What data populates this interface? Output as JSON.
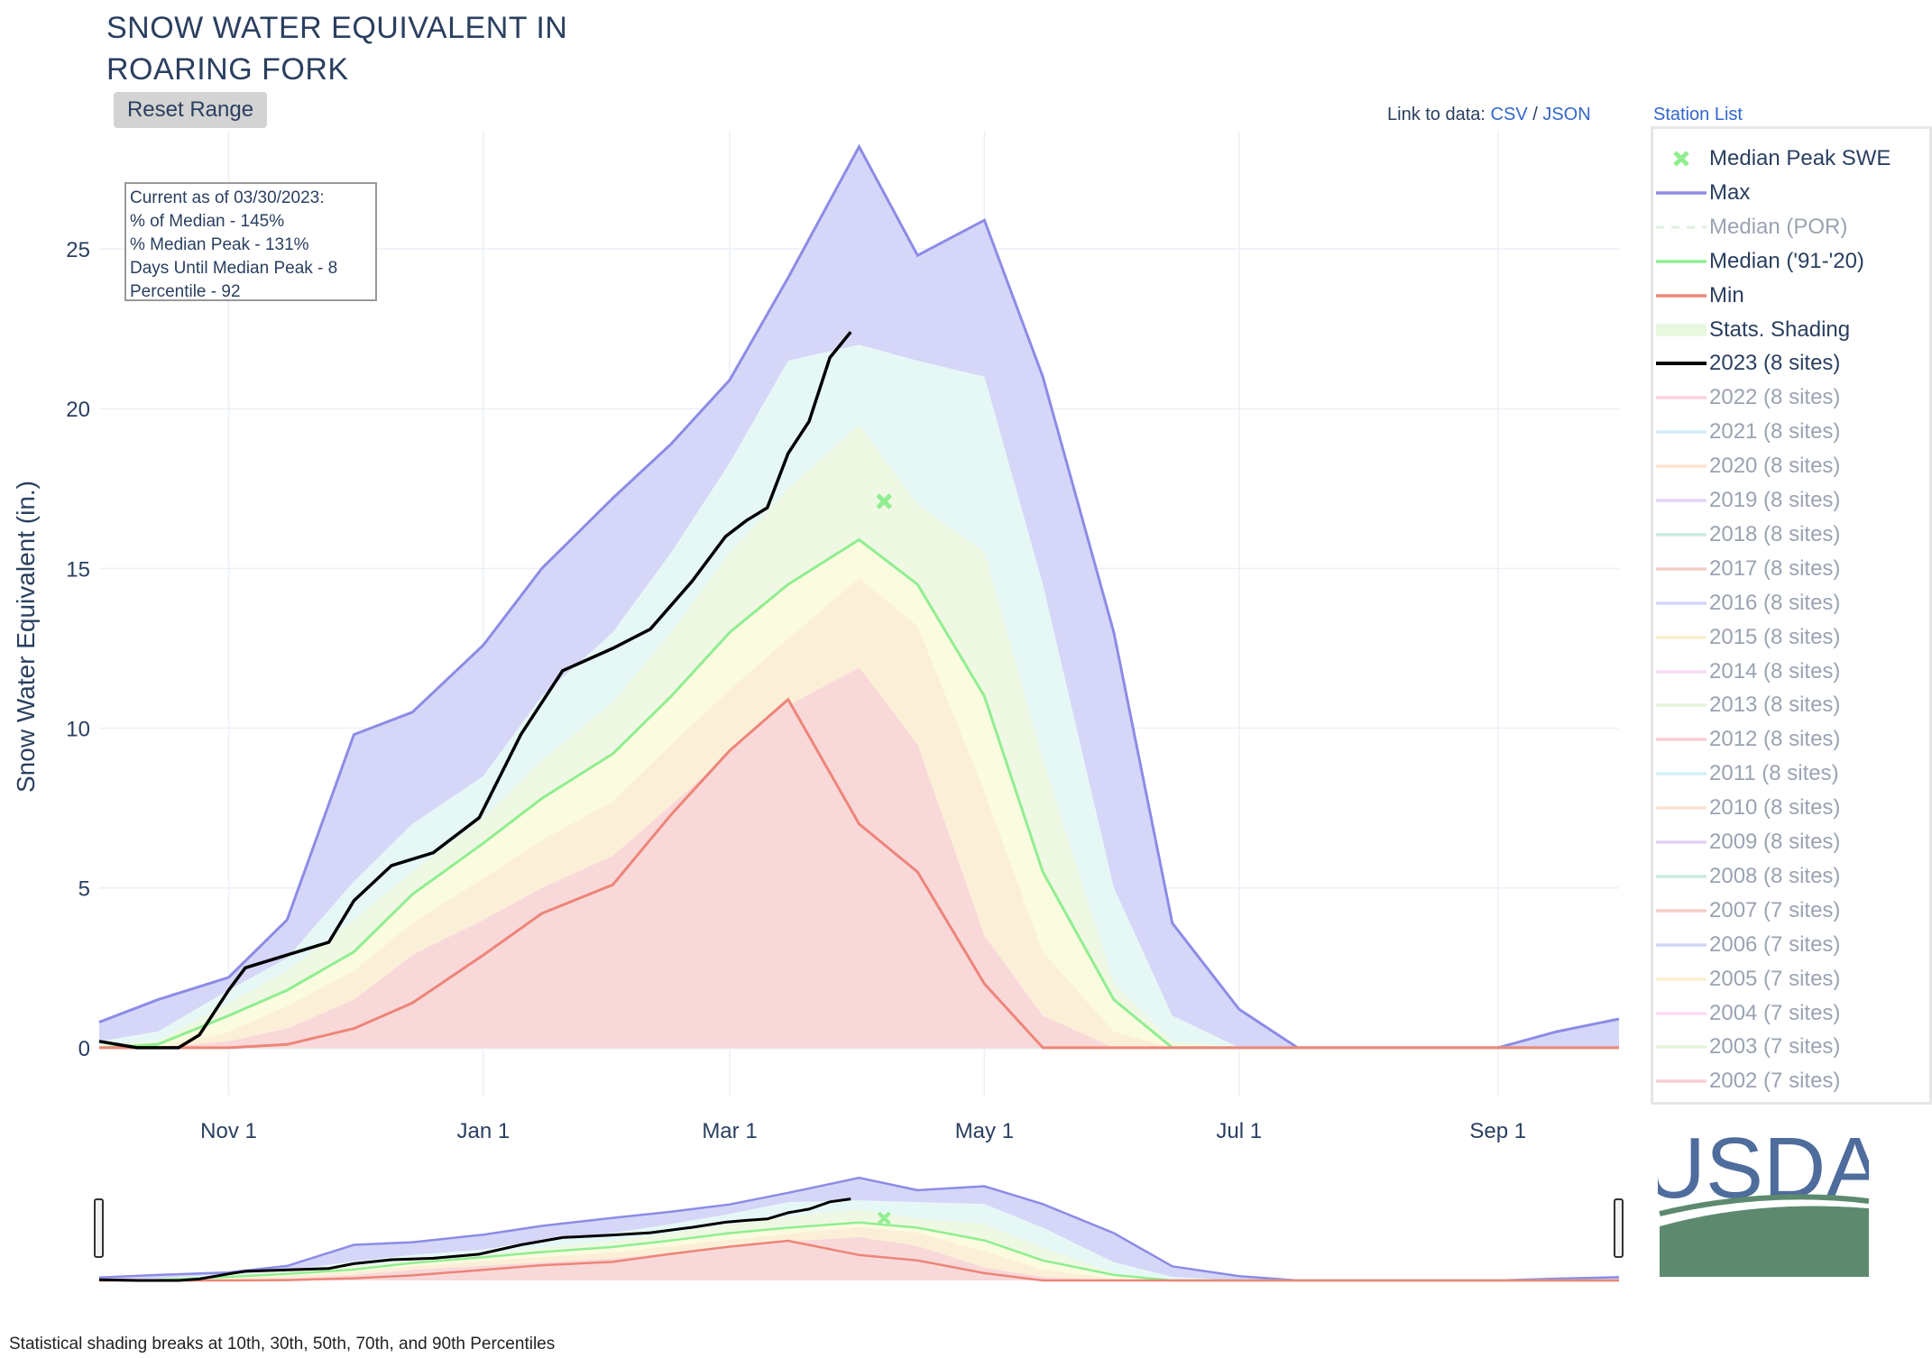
{
  "title": {
    "line1": "SNOW WATER EQUIVALENT IN",
    "line2": "ROARING FORK"
  },
  "reset_button": "Reset Range",
  "links": {
    "prefix": "Link to data:",
    "csv": "CSV",
    "sep": "/",
    "json": "JSON",
    "station_list": "Station List"
  },
  "info_box": {
    "line1": "Current as of 03/30/2023:",
    "line2": "% of Median - 145%",
    "line3": "% Median Peak - 131%",
    "line4": "Days Until Median Peak - 8",
    "line5": "Percentile - 92"
  },
  "footnote": "Statistical shading breaks at 10th, 30th, 50th, 70th, and 90th Percentiles",
  "logo": {
    "text": "USDA",
    "color_text": "#4e6c9c",
    "color_green": "#5d8a6f"
  },
  "legend": [
    {
      "label": "Median Peak SWE",
      "color": "#90ee90",
      "symbol": "x",
      "active": true
    },
    {
      "label": "Max",
      "color": "#8c8ce6",
      "symbol": "line",
      "active": true
    },
    {
      "label": "Median (POR)",
      "color": "#b8e6b8",
      "symbol": "dash",
      "active": false
    },
    {
      "label": "Median ('91-'20)",
      "color": "#90ee90",
      "symbol": "line",
      "active": true
    },
    {
      "label": "Min",
      "color": "#ed8579",
      "symbol": "line",
      "active": true
    },
    {
      "label": "Stats. Shading",
      "color": "#e8f8e0",
      "symbol": "block",
      "active": true
    },
    {
      "label": "2023 (8 sites)",
      "color": "#000000",
      "symbol": "line",
      "active": true
    },
    {
      "label": "2022 (8 sites)",
      "color": "#f4a6b8",
      "symbol": "line",
      "active": false
    },
    {
      "label": "2021 (8 sites)",
      "color": "#a8dcf0",
      "symbol": "line",
      "active": false
    },
    {
      "label": "2020 (8 sites)",
      "color": "#f8c89c",
      "symbol": "line",
      "active": false
    },
    {
      "label": "2019 (8 sites)",
      "color": "#c8a8ec",
      "symbol": "line",
      "active": false
    },
    {
      "label": "2018 (8 sites)",
      "color": "#94d8c0",
      "symbol": "line",
      "active": false
    },
    {
      "label": "2017 (8 sites)",
      "color": "#ec9c90",
      "symbol": "line",
      "active": false
    },
    {
      "label": "2016 (8 sites)",
      "color": "#a8aef0",
      "symbol": "line",
      "active": false
    },
    {
      "label": "2015 (8 sites)",
      "color": "#f6e0a0",
      "symbol": "line",
      "active": false
    },
    {
      "label": "2014 (8 sites)",
      "color": "#f2b8ea",
      "symbol": "line",
      "active": false
    },
    {
      "label": "2013 (8 sites)",
      "color": "#c4ecb4",
      "symbol": "line",
      "active": false
    },
    {
      "label": "2012 (8 sites)",
      "color": "#f4a0b0",
      "symbol": "line",
      "active": false
    },
    {
      "label": "2011 (8 sites)",
      "color": "#a8e2f4",
      "symbol": "line",
      "active": false
    },
    {
      "label": "2010 (8 sites)",
      "color": "#f8c8a8",
      "symbol": "line",
      "active": false
    },
    {
      "label": "2009 (8 sites)",
      "color": "#c8a4ec",
      "symbol": "line",
      "active": false
    },
    {
      "label": "2008 (8 sites)",
      "color": "#94d8c4",
      "symbol": "line",
      "active": false
    },
    {
      "label": "2007 (7 sites)",
      "color": "#ec9c90",
      "symbol": "line",
      "active": false
    },
    {
      "label": "2006 (7 sites)",
      "color": "#a8aef0",
      "symbol": "line",
      "active": false
    },
    {
      "label": "2005 (7 sites)",
      "color": "#f6e0a0",
      "symbol": "line",
      "active": false
    },
    {
      "label": "2004 (7 sites)",
      "color": "#f2b8ea",
      "symbol": "line",
      "active": false
    },
    {
      "label": "2003 (7 sites)",
      "color": "#c4ecb4",
      "symbol": "line",
      "active": false
    },
    {
      "label": "2002 (7 sites)",
      "color": "#f4a0b0",
      "symbol": "line",
      "active": false
    }
  ],
  "chart_data": {
    "type": "area",
    "title": "SNOW WATER EQUIVALENT IN ROARING FORK",
    "xlabel": "",
    "ylabel": "Snow Water Equivalent (in.)",
    "xlim": [
      "2022-10-01",
      "2023-09-30"
    ],
    "ylim": [
      -1.5,
      28.7
    ],
    "y_ticks": [
      0,
      5,
      10,
      15,
      20,
      25
    ],
    "x_ticks": [
      {
        "date": "2022-11-01",
        "label": "Nov  1"
      },
      {
        "date": "2023-01-01",
        "label": "Jan  1"
      },
      {
        "date": "2023-03-01",
        "label": "Mar  1"
      },
      {
        "date": "2023-05-01",
        "label": "May  1"
      },
      {
        "date": "2023-07-01",
        "label": "Jul  1"
      },
      {
        "date": "2023-09-01",
        "label": "Sep  1"
      }
    ],
    "grid": true,
    "legend_position": "right",
    "colors": {
      "max": "#8c8ce6",
      "max_fill": "#d6d6f8",
      "p90_fill": "#e6f8f6",
      "p70_fill": "#eef8e2",
      "p50_fill": "#fbfbe0",
      "p30_fill": "#fcefd8",
      "min_fill": "#f8d8d8",
      "median": "#90ee90",
      "min": "#ed8579",
      "current": "#000000"
    },
    "x": [
      "2022-10-01",
      "2022-10-15",
      "2022-11-01",
      "2022-11-15",
      "2022-12-01",
      "2022-12-15",
      "2023-01-01",
      "2023-01-15",
      "2023-02-01",
      "2023-02-15",
      "2023-03-01",
      "2023-03-15",
      "2023-04-01",
      "2023-04-15",
      "2023-05-01",
      "2023-05-15",
      "2023-06-01",
      "2023-06-15",
      "2023-07-01",
      "2023-07-15",
      "2023-08-01",
      "2023-08-15",
      "2023-09-01",
      "2023-09-15",
      "2023-09-30"
    ],
    "series": [
      {
        "name": "Max",
        "values": [
          0.8,
          1.5,
          2.2,
          4.0,
          9.8,
          10.5,
          12.6,
          15.0,
          17.2,
          18.9,
          20.9,
          24.1,
          28.2,
          24.8,
          25.9,
          21.0,
          13.0,
          3.9,
          1.2,
          0.0,
          0.0,
          0.0,
          0.0,
          0.5,
          0.9
        ]
      },
      {
        "name": "90th Percentile",
        "values": [
          0.2,
          0.5,
          1.8,
          2.8,
          5.2,
          7.0,
          8.5,
          11.0,
          13.0,
          15.5,
          18.3,
          21.5,
          22.0,
          21.5,
          21.0,
          14.5,
          5.0,
          1.0,
          0.0,
          0.0,
          0.0,
          0.0,
          0.0,
          0.0,
          0.0
        ]
      },
      {
        "name": "70th Percentile",
        "values": [
          0.1,
          0.2,
          1.4,
          2.4,
          4.0,
          5.5,
          7.2,
          9.0,
          10.8,
          13.0,
          15.5,
          17.5,
          19.5,
          17.0,
          15.5,
          9.0,
          2.0,
          0.2,
          0.0,
          0.0,
          0.0,
          0.0,
          0.0,
          0.0,
          0.0
        ]
      },
      {
        "name": "Median ('91-'20)",
        "values": [
          0.0,
          0.1,
          1.0,
          1.8,
          3.0,
          4.8,
          6.4,
          7.8,
          9.2,
          11.0,
          13.0,
          14.5,
          15.9,
          14.5,
          11.0,
          5.5,
          1.5,
          0.0,
          0.0,
          0.0,
          0.0,
          0.0,
          0.0,
          0.0,
          0.0
        ]
      },
      {
        "name": "30th Percentile",
        "values": [
          0.0,
          0.0,
          0.5,
          1.3,
          2.4,
          3.9,
          5.3,
          6.5,
          7.7,
          9.5,
          11.2,
          12.8,
          14.7,
          13.2,
          8.0,
          3.0,
          0.5,
          0.0,
          0.0,
          0.0,
          0.0,
          0.0,
          0.0,
          0.0,
          0.0
        ]
      },
      {
        "name": "10th Percentile",
        "values": [
          0.0,
          0.0,
          0.2,
          0.6,
          1.5,
          2.9,
          4.0,
          5.0,
          6.0,
          7.6,
          9.2,
          10.7,
          11.9,
          9.5,
          3.5,
          1.0,
          0.0,
          0.0,
          0.0,
          0.0,
          0.0,
          0.0,
          0.0,
          0.0,
          0.0
        ]
      },
      {
        "name": "Min",
        "values": [
          0.0,
          0.0,
          0.0,
          0.1,
          0.6,
          1.4,
          2.9,
          4.2,
          5.1,
          7.3,
          9.3,
          10.9,
          7.0,
          5.5,
          2.0,
          0.0,
          0.0,
          0.0,
          0.0,
          0.0,
          0.0,
          0.0,
          0.0,
          0.0,
          0.0
        ]
      }
    ],
    "current_2023": {
      "name": "2023 (8 sites)",
      "x": [
        "2022-10-01",
        "2022-10-10",
        "2022-10-20",
        "2022-10-25",
        "2022-11-01",
        "2022-11-05",
        "2022-11-15",
        "2022-11-25",
        "2022-12-01",
        "2022-12-10",
        "2022-12-20",
        "2022-12-31",
        "2023-01-10",
        "2023-01-20",
        "2023-02-01",
        "2023-02-10",
        "2023-02-20",
        "2023-02-28",
        "2023-03-05",
        "2023-03-10",
        "2023-03-15",
        "2023-03-20",
        "2023-03-25",
        "2023-03-30"
      ],
      "values": [
        0.2,
        0.0,
        0.0,
        0.4,
        1.8,
        2.5,
        2.9,
        3.3,
        4.6,
        5.7,
        6.1,
        7.2,
        9.8,
        11.8,
        12.5,
        13.1,
        14.6,
        16.0,
        16.5,
        16.9,
        18.6,
        19.6,
        21.6,
        22.4
      ]
    },
    "median_peak": {
      "name": "Median Peak SWE",
      "date": "2023-04-07",
      "value": 17.1
    }
  }
}
